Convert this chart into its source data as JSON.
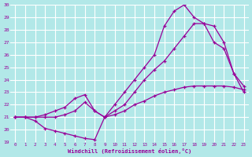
{
  "xlabel": "Windchill (Refroidissement éolien,°C)",
  "bg_color": "#b2e8e8",
  "line_color": "#990099",
  "grid_color": "#c8e8e8",
  "xlim": [
    -0.5,
    23.5
  ],
  "ylim": [
    19,
    30
  ],
  "yticks": [
    19,
    20,
    21,
    22,
    23,
    24,
    25,
    26,
    27,
    28,
    29,
    30
  ],
  "xticks": [
    0,
    1,
    2,
    3,
    4,
    5,
    6,
    7,
    8,
    9,
    10,
    11,
    12,
    13,
    14,
    15,
    16,
    17,
    18,
    19,
    20,
    21,
    22,
    23
  ],
  "line1_x": [
    0,
    1,
    2,
    3,
    4,
    5,
    6,
    7,
    8,
    9,
    10,
    11,
    12,
    13,
    14,
    15,
    16,
    17,
    18,
    19,
    20,
    21,
    22,
    23
  ],
  "line1_y": [
    21.0,
    21.0,
    20.7,
    20.1,
    19.9,
    19.7,
    19.5,
    19.3,
    19.2,
    21.0,
    21.2,
    21.5,
    22.0,
    22.3,
    22.7,
    23.0,
    23.2,
    23.4,
    23.5,
    23.5,
    23.5,
    23.5,
    23.4,
    23.2
  ],
  "line2_x": [
    0,
    1,
    2,
    3,
    4,
    5,
    6,
    7,
    8,
    9,
    10,
    11,
    12,
    13,
    14,
    15,
    16,
    17,
    18,
    19,
    20,
    21,
    22,
    23
  ],
  "line2_y": [
    21.0,
    21.0,
    21.0,
    21.0,
    21.0,
    21.2,
    21.5,
    22.2,
    21.5,
    21.0,
    21.5,
    22.0,
    23.0,
    24.0,
    24.8,
    25.5,
    26.5,
    27.5,
    28.5,
    28.5,
    27.0,
    26.5,
    24.5,
    23.5
  ],
  "line3_x": [
    0,
    1,
    2,
    3,
    4,
    5,
    6,
    7,
    8,
    9,
    10,
    11,
    12,
    13,
    14,
    15,
    16,
    17,
    18,
    19,
    20,
    21,
    22,
    23
  ],
  "line3_y": [
    21.0,
    21.0,
    21.0,
    21.2,
    21.5,
    21.8,
    22.5,
    22.8,
    21.5,
    21.0,
    22.0,
    23.0,
    24.0,
    25.0,
    26.0,
    28.3,
    29.5,
    30.0,
    29.0,
    28.5,
    28.3,
    27.0,
    24.5,
    23.0
  ]
}
